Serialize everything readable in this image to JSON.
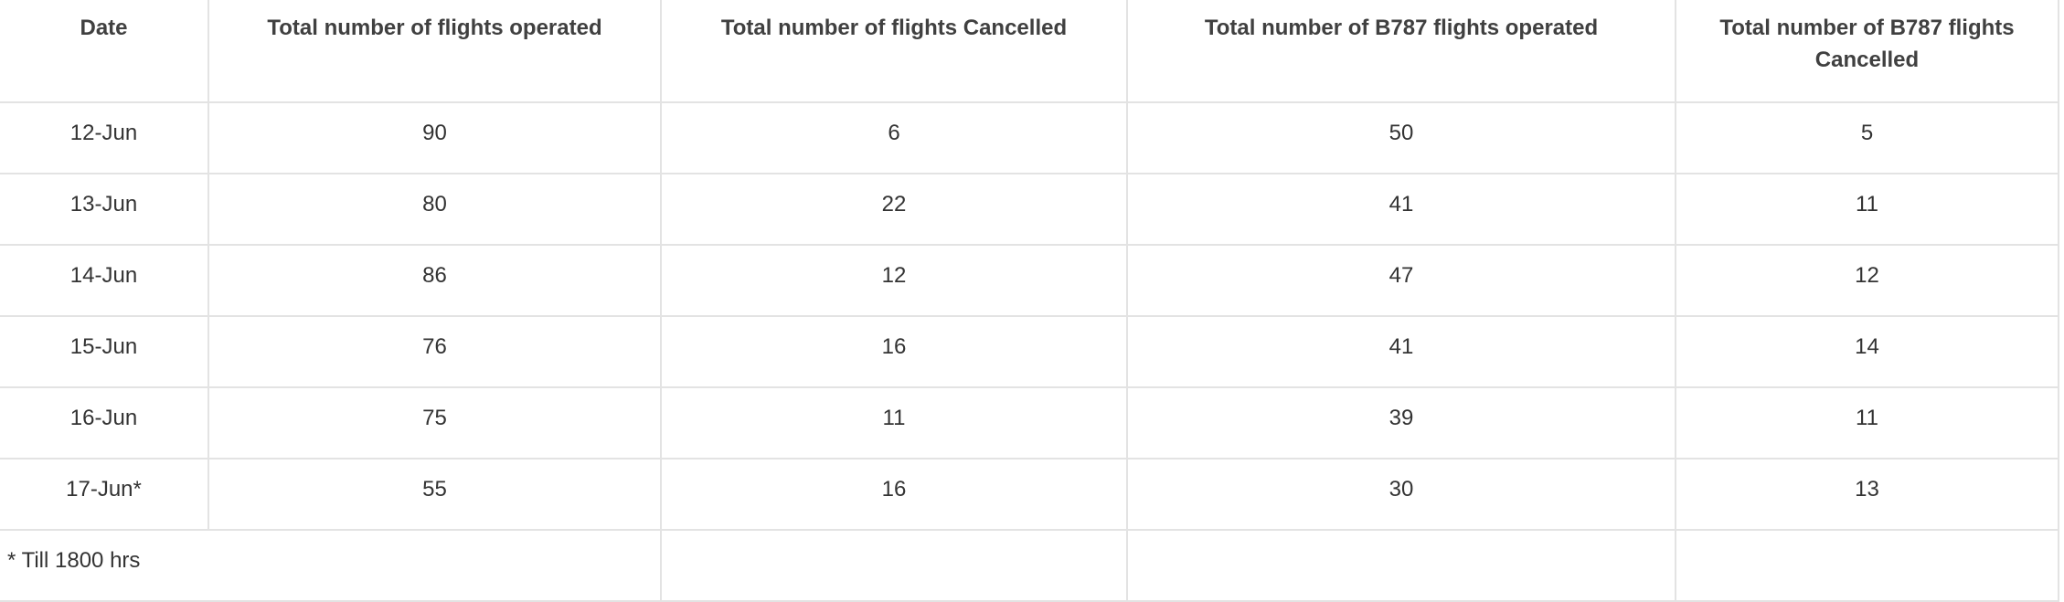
{
  "table": {
    "headers": [
      "Date",
      "Total number of flights operated",
      "Total number of flights Cancelled",
      "Total number of B787 flights operated",
      "Total number of B787 flights Cancelled"
    ],
    "rows": [
      [
        "12-Jun",
        "90",
        "6",
        "50",
        "5"
      ],
      [
        "13-Jun",
        "80",
        "22",
        "41",
        "11"
      ],
      [
        "14-Jun",
        "86",
        "12",
        "47",
        "12"
      ],
      [
        "15-Jun",
        "76",
        "16",
        "41",
        "14"
      ],
      [
        "16-Jun",
        "75",
        "11",
        "39",
        "11"
      ],
      [
        "17-Jun*",
        "55",
        "16",
        "30",
        "13"
      ]
    ],
    "footnote": "* Till 1800 hrs"
  },
  "colors": {
    "text": "#333333",
    "header_text": "#404040",
    "border": "#e3e3e3",
    "background": "#ffffff"
  }
}
